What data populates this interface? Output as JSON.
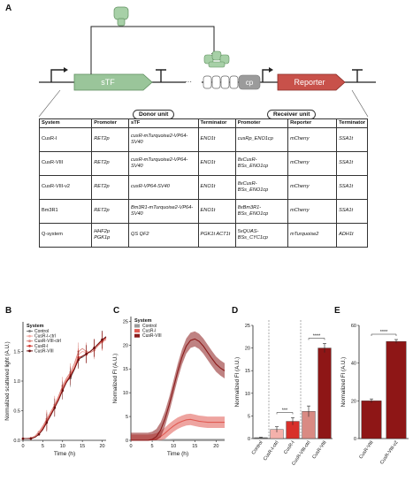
{
  "panels": {
    "a": "A",
    "b": "B",
    "c": "C",
    "d": "D",
    "e": "E"
  },
  "diagram": {
    "stf_label": "sTF",
    "cp_label": "cp",
    "reporter_label": "Reporter",
    "colors": {
      "stf": "#9ac59a",
      "reporter": "#c8514a",
      "cp": "#9b9b9b",
      "protein": "#a7d0a7"
    }
  },
  "table": {
    "donor_unit": "Donor unit",
    "receiver_unit": "Receiver unit",
    "headers": [
      "System",
      "Promoter",
      "sTF",
      "Terminator",
      "Promoter",
      "Reporter",
      "Terminator"
    ],
    "rows": [
      [
        "CusR-I",
        "RET2p",
        "cusR-mTurquoise2-VP64-SV40",
        "ENO1t",
        "cusRp_ENO1cp",
        "mCherry",
        "SSA1t"
      ],
      [
        "CusR-VIII",
        "RET2p",
        "cusR-mTurquoise2-VP64-SV40",
        "ENO1t",
        "8xCusR-BSs_ENO1cp",
        "mCherry",
        "SSA1t"
      ],
      [
        "CusR-VIII-v2",
        "RET2p",
        "cusR-VP64-SV40",
        "ENO1t",
        "8xCusR-BSs_ENO1cp",
        "mCherry",
        "SSA1t"
      ],
      [
        "Bm3R1",
        "RET2p",
        "Bm3R1-mTurquoise2-VP64-SV40",
        "ENO1t",
        "8xBm3R1-BSs_ENO1cp",
        "mCherry",
        "SSA1t"
      ],
      [
        "Q-system",
        "HHF2p PGK1p",
        "QS QF2",
        "PGK1t ACT1t",
        "5xQUAS-BSs_CYC1cp",
        "mTurquoise2",
        "ADH1t"
      ]
    ]
  },
  "chart_data": [
    {
      "panel": "B",
      "type": "line",
      "xlabel": "Time (h)",
      "ylabel": "Normalized scattered light (A.U.)",
      "xlim": [
        0,
        21
      ],
      "ylim": [
        0,
        2.0
      ],
      "xticks": [
        0,
        5,
        10,
        15,
        20
      ],
      "yticks": [
        "0.0",
        "0.5",
        "1.0",
        "1.5"
      ],
      "legend_title": "System",
      "x": [
        0,
        1,
        2,
        3,
        4,
        5,
        6,
        7,
        8,
        9,
        10,
        11,
        12,
        13,
        14,
        15,
        16,
        17,
        18,
        19,
        20,
        21
      ],
      "series": [
        {
          "name": "Control",
          "color": "#777777",
          "values": [
            0.03,
            0.03,
            0.03,
            0.05,
            0.1,
            0.2,
            0.33,
            0.42,
            0.55,
            0.7,
            0.85,
            1.0,
            1.05,
            1.2,
            1.38,
            1.4,
            1.45,
            1.5,
            1.55,
            1.62,
            1.7,
            1.74
          ]
        },
        {
          "name": "CusR-I-ctrl",
          "color": "#f2a7a0",
          "values": [
            0.03,
            0.03,
            0.03,
            0.06,
            0.12,
            0.22,
            0.33,
            0.45,
            0.58,
            0.72,
            0.9,
            1.02,
            1.12,
            1.25,
            1.45,
            1.5,
            1.48,
            1.5,
            1.55,
            1.62,
            1.68,
            1.72
          ]
        },
        {
          "name": "CusR-VIII-ctrl",
          "color": "#d9837b",
          "values": [
            0.03,
            0.03,
            0.04,
            0.07,
            0.14,
            0.24,
            0.36,
            0.48,
            0.6,
            0.75,
            0.92,
            1.05,
            1.15,
            1.3,
            1.5,
            1.55,
            1.5,
            1.48,
            1.52,
            1.6,
            1.66,
            1.7
          ]
        },
        {
          "name": "CusR-I",
          "color": "#d23a33",
          "values": [
            0.03,
            0.03,
            0.03,
            0.05,
            0.1,
            0.2,
            0.32,
            0.44,
            0.56,
            0.7,
            0.86,
            1.0,
            1.1,
            1.22,
            1.4,
            1.42,
            1.45,
            1.5,
            1.56,
            1.62,
            1.68,
            1.73
          ]
        },
        {
          "name": "CusR-VIII",
          "color": "#6b0f0f",
          "values": [
            0.03,
            0.03,
            0.03,
            0.05,
            0.1,
            0.18,
            0.3,
            0.42,
            0.55,
            0.68,
            0.84,
            0.98,
            1.08,
            1.2,
            1.36,
            1.42,
            1.46,
            1.5,
            1.56,
            1.63,
            1.7,
            1.75
          ]
        }
      ]
    },
    {
      "panel": "C",
      "type": "line",
      "xlabel": "Time (h)",
      "ylabel": "Normalized FI (A.U.)",
      "xlim": [
        0,
        22
      ],
      "ylim": [
        0,
        26
      ],
      "xticks": [
        0,
        5,
        10,
        15,
        20
      ],
      "yticks": [
        "0",
        "5",
        "10",
        "15",
        "20",
        "25"
      ],
      "legend_title": "System",
      "x": [
        0,
        1,
        2,
        3,
        4,
        5,
        6,
        7,
        8,
        9,
        10,
        11,
        12,
        13,
        14,
        15,
        16,
        17,
        18,
        19,
        20,
        21,
        22
      ],
      "series": [
        {
          "name": "Control",
          "color": "#9a9a9a",
          "values": [
            0,
            0,
            0,
            0,
            0,
            0,
            0,
            0.05,
            0.1,
            0.1,
            0.15,
            0.15,
            0.15,
            0.15,
            0.15,
            0.15,
            0.15,
            0.15,
            0.15,
            0.15,
            0.15,
            0.15,
            0.15
          ],
          "band": 0.2
        },
        {
          "name": "CusR-I",
          "color": "#e05a52",
          "values": [
            0,
            0,
            0,
            0,
            0,
            0.1,
            0.3,
            0.8,
            1.5,
            2.3,
            3.0,
            3.6,
            4.0,
            4.3,
            4.4,
            4.2,
            4.0,
            3.9,
            3.8,
            3.8,
            3.8,
            3.8,
            3.8
          ],
          "band": 1.2
        },
        {
          "name": "CusR-VIII",
          "color": "#8b1b1b",
          "values": [
            0,
            0,
            0,
            0,
            0,
            0.2,
            0.8,
            2.2,
            4.5,
            7.5,
            11.0,
            14.5,
            17.5,
            19.8,
            21.0,
            21.3,
            20.8,
            19.8,
            18.5,
            17.2,
            16.0,
            15.2,
            14.6
          ],
          "band": 1.6
        }
      ]
    },
    {
      "panel": "D",
      "type": "bar",
      "ylabel": "Normalized FI (A.U.)",
      "ylim": [
        0,
        25
      ],
      "yticks": [
        "0",
        "5",
        "10",
        "15",
        "20",
        "25"
      ],
      "categories": [
        "Control",
        "CusR-I-ctrl",
        "CusR-I",
        "CusR-VIII-ctrl",
        "CusR-VIII"
      ],
      "values": [
        0.2,
        2.0,
        3.8,
        6.0,
        20.0
      ],
      "errors": [
        0.1,
        0.6,
        0.8,
        1.2,
        1.0
      ],
      "colors": [
        "#7a7a7a",
        "#f4b1ab",
        "#d8302a",
        "#d98a83",
        "#8e1616"
      ],
      "significance": [
        {
          "label": "***",
          "from": 1,
          "to": 2
        },
        {
          "label": "****",
          "from": 3,
          "to": 4
        }
      ]
    },
    {
      "panel": "E",
      "type": "bar",
      "ylabel": "Normalized FI (A.U.)",
      "ylim": [
        0,
        60
      ],
      "yticks": [
        "0",
        "20",
        "40",
        "60"
      ],
      "categories": [
        "CusR-VIII",
        "CusR-VIII-v2"
      ],
      "values": [
        20.0,
        51.5
      ],
      "errors": [
        1.0,
        1.0
      ],
      "colors": [
        "#8e1616",
        "#8e1616"
      ],
      "significance": [
        {
          "label": "****",
          "from": 0,
          "to": 1
        }
      ]
    }
  ]
}
